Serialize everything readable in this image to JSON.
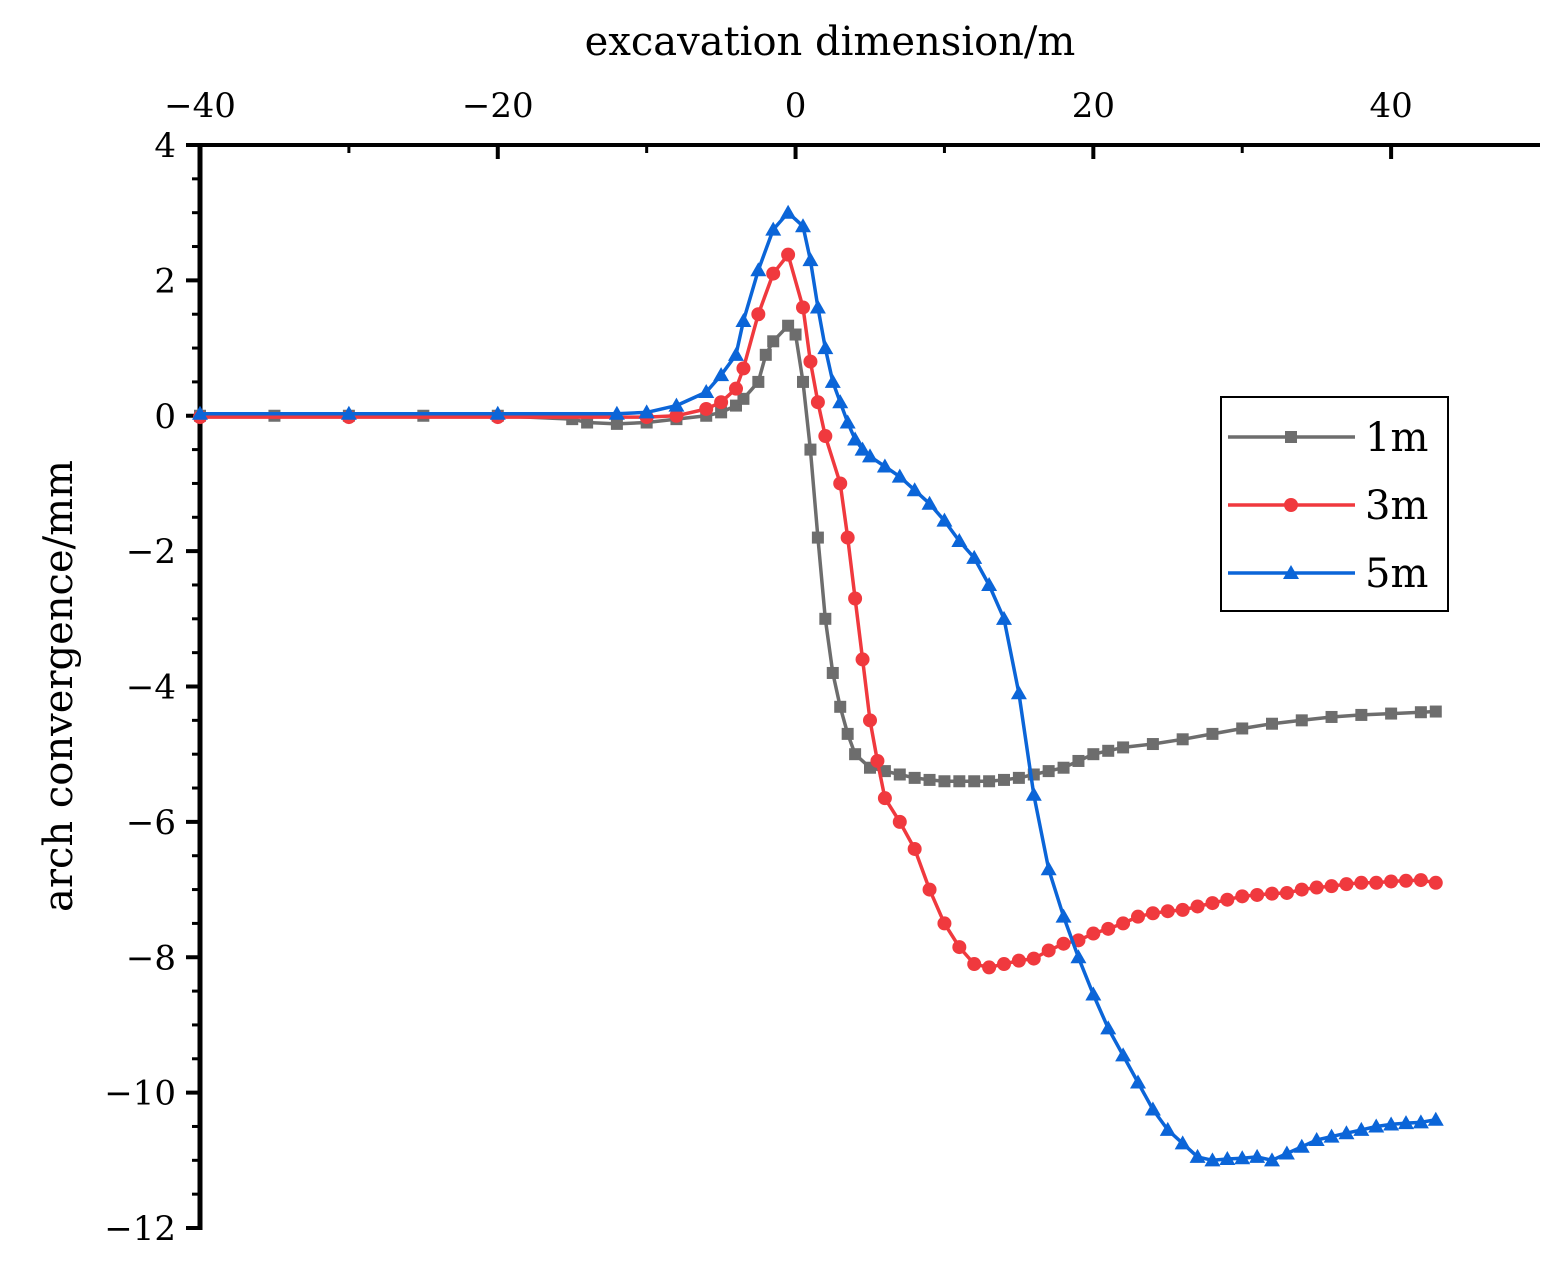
{
  "chart_data": {
    "type": "line",
    "title": "",
    "xlabel": "excavation dimension/m",
    "ylabel": "arch convergence/mm",
    "xlim": [
      -40,
      50
    ],
    "ylim": [
      -12,
      4
    ],
    "x_ticks": [
      -40,
      -20,
      0,
      20,
      40
    ],
    "x_tick_labels": [
      "−40",
      "−20",
      "0",
      "20",
      "40"
    ],
    "y_ticks": [
      4,
      2,
      0,
      -2,
      -4,
      -6,
      -8,
      -10,
      -12
    ],
    "y_tick_labels": [
      "4",
      "2",
      "0",
      "−2",
      "−4",
      "−6",
      "−8",
      "−10",
      "−12"
    ],
    "x_axis_position": "top",
    "legend_position": "right",
    "grid": false,
    "series": [
      {
        "name": "1m",
        "color": "#6d6d6d",
        "marker": "square",
        "points": [
          [
            -40,
            0
          ],
          [
            -35,
            0
          ],
          [
            -30,
            0
          ],
          [
            -25,
            0
          ],
          [
            -20,
            0
          ],
          [
            -15,
            -0.05
          ],
          [
            -14,
            -0.1
          ],
          [
            -12,
            -0.12
          ],
          [
            -10,
            -0.1
          ],
          [
            -8,
            -0.05
          ],
          [
            -6,
            0.0
          ],
          [
            -5,
            0.05
          ],
          [
            -4,
            0.15
          ],
          [
            -3.5,
            0.25
          ],
          [
            -2.5,
            0.5
          ],
          [
            -2,
            0.9
          ],
          [
            -1.5,
            1.1
          ],
          [
            -0.5,
            1.33
          ],
          [
            0,
            1.2
          ],
          [
            0.5,
            0.5
          ],
          [
            1,
            -0.5
          ],
          [
            1.5,
            -1.8
          ],
          [
            2,
            -3.0
          ],
          [
            2.5,
            -3.8
          ],
          [
            3,
            -4.3
          ],
          [
            3.5,
            -4.7
          ],
          [
            4,
            -5.0
          ],
          [
            5,
            -5.2
          ],
          [
            6,
            -5.25
          ],
          [
            7,
            -5.3
          ],
          [
            8,
            -5.35
          ],
          [
            9,
            -5.38
          ],
          [
            10,
            -5.4
          ],
          [
            11,
            -5.4
          ],
          [
            12,
            -5.4
          ],
          [
            13,
            -5.4
          ],
          [
            14,
            -5.38
          ],
          [
            15,
            -5.35
          ],
          [
            16,
            -5.3
          ],
          [
            17,
            -5.25
          ],
          [
            18,
            -5.2
          ],
          [
            19,
            -5.1
          ],
          [
            20,
            -5.0
          ],
          [
            21,
            -4.95
          ],
          [
            22,
            -4.9
          ],
          [
            24,
            -4.85
          ],
          [
            26,
            -4.78
          ],
          [
            28,
            -4.7
          ],
          [
            30,
            -4.62
          ],
          [
            32,
            -4.55
          ],
          [
            34,
            -4.5
          ],
          [
            36,
            -4.45
          ],
          [
            38,
            -4.42
          ],
          [
            40,
            -4.4
          ],
          [
            42,
            -4.38
          ],
          [
            43,
            -4.37
          ]
        ]
      },
      {
        "name": "3m",
        "color": "#f0393e",
        "marker": "circle",
        "points": [
          [
            -40,
            -0.02
          ],
          [
            -30,
            -0.02
          ],
          [
            -20,
            -0.02
          ],
          [
            -10,
            -0.02
          ],
          [
            -8,
            0.0
          ],
          [
            -6,
            0.1
          ],
          [
            -5,
            0.2
          ],
          [
            -4,
            0.4
          ],
          [
            -3.5,
            0.7
          ],
          [
            -2.5,
            1.5
          ],
          [
            -1.5,
            2.1
          ],
          [
            -0.5,
            2.38
          ],
          [
            0.5,
            1.6
          ],
          [
            1,
            0.8
          ],
          [
            1.5,
            0.2
          ],
          [
            2,
            -0.3
          ],
          [
            3,
            -1.0
          ],
          [
            3.5,
            -1.8
          ],
          [
            4,
            -2.7
          ],
          [
            4.5,
            -3.6
          ],
          [
            5,
            -4.5
          ],
          [
            5.5,
            -5.1
          ],
          [
            6,
            -5.65
          ],
          [
            7,
            -6.0
          ],
          [
            8,
            -6.4
          ],
          [
            9,
            -7.0
          ],
          [
            10,
            -7.5
          ],
          [
            11,
            -7.85
          ],
          [
            12,
            -8.1
          ],
          [
            13,
            -8.15
          ],
          [
            14,
            -8.1
          ],
          [
            15,
            -8.05
          ],
          [
            16,
            -8.02
          ],
          [
            17,
            -7.9
          ],
          [
            18,
            -7.8
          ],
          [
            19,
            -7.75
          ],
          [
            20,
            -7.65
          ],
          [
            21,
            -7.58
          ],
          [
            22,
            -7.5
          ],
          [
            23,
            -7.4
          ],
          [
            24,
            -7.35
          ],
          [
            25,
            -7.32
          ],
          [
            26,
            -7.3
          ],
          [
            27,
            -7.25
          ],
          [
            28,
            -7.2
          ],
          [
            29,
            -7.15
          ],
          [
            30,
            -7.1
          ],
          [
            31,
            -7.08
          ],
          [
            32,
            -7.06
          ],
          [
            33,
            -7.05
          ],
          [
            34,
            -7.0
          ],
          [
            35,
            -6.97
          ],
          [
            36,
            -6.95
          ],
          [
            37,
            -6.92
          ],
          [
            38,
            -6.9
          ],
          [
            39,
            -6.9
          ],
          [
            40,
            -6.88
          ],
          [
            41,
            -6.87
          ],
          [
            42,
            -6.86
          ],
          [
            43,
            -6.9
          ]
        ]
      },
      {
        "name": "5m",
        "color": "#0b65d8",
        "marker": "triangle",
        "points": [
          [
            -40,
            0.03
          ],
          [
            -30,
            0.03
          ],
          [
            -20,
            0.03
          ],
          [
            -12,
            0.03
          ],
          [
            -10,
            0.05
          ],
          [
            -8,
            0.15
          ],
          [
            -6,
            0.35
          ],
          [
            -5,
            0.6
          ],
          [
            -4,
            0.9
          ],
          [
            -3.5,
            1.4
          ],
          [
            -2.5,
            2.15
          ],
          [
            -1.5,
            2.75
          ],
          [
            -0.5,
            3.0
          ],
          [
            0.5,
            2.8
          ],
          [
            1,
            2.3
          ],
          [
            1.5,
            1.6
          ],
          [
            2,
            1.0
          ],
          [
            2.5,
            0.5
          ],
          [
            3,
            0.2
          ],
          [
            3.5,
            -0.1
          ],
          [
            4,
            -0.35
          ],
          [
            4.5,
            -0.5
          ],
          [
            5,
            -0.6
          ],
          [
            6,
            -0.75
          ],
          [
            7,
            -0.9
          ],
          [
            8,
            -1.1
          ],
          [
            9,
            -1.3
          ],
          [
            10,
            -1.55
          ],
          [
            11,
            -1.85
          ],
          [
            12,
            -2.1
          ],
          [
            13,
            -2.5
          ],
          [
            14,
            -3.0
          ],
          [
            15,
            -4.1
          ],
          [
            16,
            -5.6
          ],
          [
            17,
            -6.7
          ],
          [
            18,
            -7.4
          ],
          [
            19,
            -8.0
          ],
          [
            20,
            -8.55
          ],
          [
            21,
            -9.05
          ],
          [
            22,
            -9.45
          ],
          [
            23,
            -9.85
          ],
          [
            24,
            -10.25
          ],
          [
            25,
            -10.55
          ],
          [
            26,
            -10.75
          ],
          [
            27,
            -10.95
          ],
          [
            28,
            -11.0
          ],
          [
            29,
            -10.98
          ],
          [
            30,
            -10.97
          ],
          [
            31,
            -10.95
          ],
          [
            32,
            -11.0
          ],
          [
            33,
            -10.9
          ],
          [
            34,
            -10.8
          ],
          [
            35,
            -10.7
          ],
          [
            36,
            -10.65
          ],
          [
            37,
            -10.6
          ],
          [
            38,
            -10.55
          ],
          [
            39,
            -10.5
          ],
          [
            40,
            -10.47
          ],
          [
            41,
            -10.45
          ],
          [
            42,
            -10.44
          ],
          [
            43,
            -10.4
          ]
        ]
      }
    ]
  }
}
